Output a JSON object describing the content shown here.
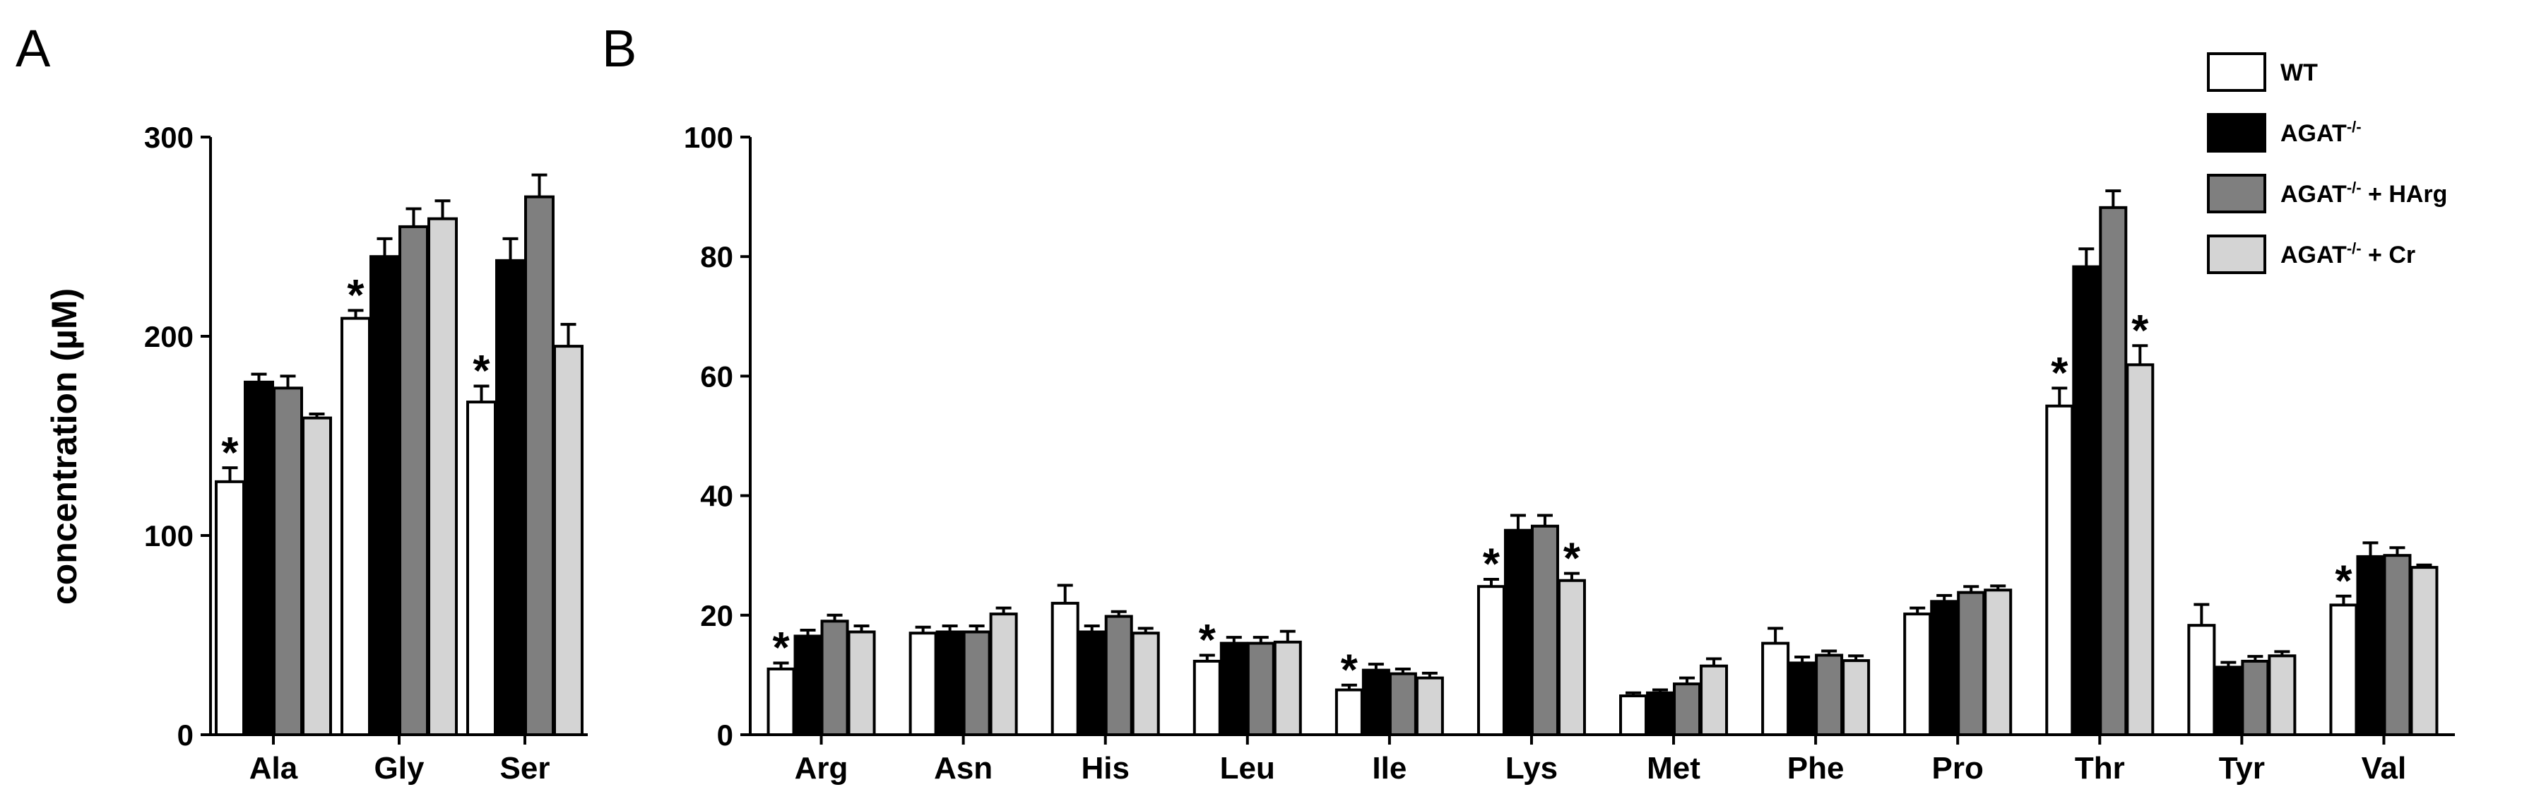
{
  "chart_data": [
    {
      "type": "bar",
      "panel": "A",
      "ylabel": "concentration (µM)",
      "ylim": [
        0,
        300
      ],
      "yticks": [
        0,
        100,
        200,
        300
      ],
      "categories": [
        "Ala",
        "Gly",
        "Ser"
      ],
      "series": [
        {
          "name": "WT",
          "values": [
            127,
            209,
            167
          ],
          "errors": [
            7,
            4,
            8
          ]
        },
        {
          "name": "AGAT-/-",
          "values": [
            177,
            240,
            238
          ],
          "errors": [
            4,
            9,
            11
          ]
        },
        {
          "name": "AGAT-/- + HArg",
          "values": [
            174,
            255,
            270
          ],
          "errors": [
            6,
            9,
            11
          ]
        },
        {
          "name": "AGAT-/- + Cr",
          "values": [
            159,
            259,
            195
          ],
          "errors": [
            2,
            9,
            11
          ]
        }
      ],
      "significance": [
        {
          "category": "Ala",
          "series": "WT"
        },
        {
          "category": "Gly",
          "series": "WT"
        },
        {
          "category": "Ser",
          "series": "WT"
        }
      ]
    },
    {
      "type": "bar",
      "panel": "B",
      "ylim": [
        0,
        100
      ],
      "yticks": [
        0,
        20,
        40,
        60,
        80,
        100
      ],
      "categories": [
        "Arg",
        "Asn",
        "His",
        "Leu",
        "Ile",
        "Lys",
        "Met",
        "Phe",
        "Pro",
        "Thr",
        "Tyr",
        "Val"
      ],
      "series": [
        {
          "name": "WT",
          "values": [
            11,
            17,
            22,
            12.3,
            7.5,
            24.8,
            6.5,
            15.3,
            20.2,
            55,
            18.3,
            21.7
          ],
          "errors": [
            1,
            1,
            3,
            1,
            0.8,
            1.2,
            0.5,
            2.5,
            1,
            3,
            3.5,
            1.5
          ]
        },
        {
          "name": "AGAT-/-",
          "values": [
            16.5,
            17.2,
            17.2,
            15.3,
            10.8,
            34.2,
            7,
            12,
            22.3,
            78.3,
            11.3,
            29.8
          ],
          "errors": [
            1,
            1,
            1,
            1,
            1,
            2.5,
            0.5,
            1,
            1,
            3,
            0.8,
            2.3
          ]
        },
        {
          "name": "AGAT-/- + HArg",
          "values": [
            19,
            17.2,
            19.8,
            15.3,
            10.2,
            34.9,
            8.5,
            13.3,
            23.8,
            88.2,
            12.3,
            30
          ],
          "errors": [
            1,
            1,
            0.8,
            1,
            0.8,
            1.8,
            1,
            0.7,
            1,
            2.8,
            0.8,
            1.3
          ]
        },
        {
          "name": "AGAT-/- + Cr",
          "values": [
            17.2,
            20.2,
            17,
            15.5,
            9.5,
            25.8,
            11.5,
            12.4,
            24.2,
            61.9,
            13.2,
            28
          ],
          "errors": [
            1,
            1,
            0.8,
            1.8,
            0.8,
            1.2,
            1.2,
            0.8,
            0.7,
            3.2,
            0.7,
            0.4
          ]
        }
      ],
      "significance": [
        {
          "category": "Arg",
          "series": "WT"
        },
        {
          "category": "Leu",
          "series": "WT"
        },
        {
          "category": "Ile",
          "series": "WT"
        },
        {
          "category": "Lys",
          "series": "WT"
        },
        {
          "category": "Lys",
          "series": "AGAT-/- + Cr"
        },
        {
          "category": "Thr",
          "series": "WT"
        },
        {
          "category": "Thr",
          "series": "AGAT-/- + Cr"
        },
        {
          "category": "Val",
          "series": "WT"
        }
      ]
    }
  ],
  "legend": {
    "placement": "top-right",
    "items": [
      {
        "base": "WT",
        "sup": "",
        "suffix": "",
        "color": "#ffffff"
      },
      {
        "base": "AGAT",
        "sup": "-/-",
        "suffix": "",
        "color": "#000000"
      },
      {
        "base": "AGAT",
        "sup": "-/-",
        "suffix": " + HArg",
        "color": "#7f7f7f"
      },
      {
        "base": "AGAT",
        "sup": "-/-",
        "suffix": " + Cr",
        "color": "#d4d4d4"
      }
    ]
  },
  "significance_marker": "*",
  "series_colors": [
    "#ffffff",
    "#000000",
    "#7f7f7f",
    "#d4d4d4"
  ]
}
